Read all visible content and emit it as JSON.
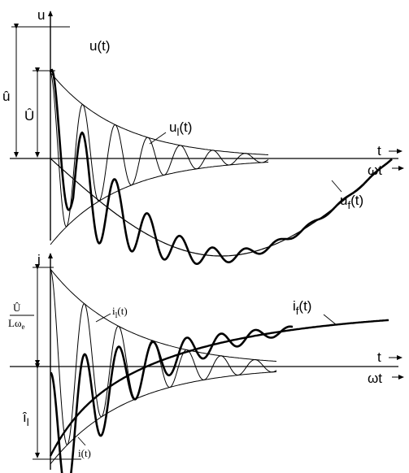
{
  "upper": {
    "axis_v": "u",
    "axis_t": "t",
    "axis_wt": "ωt",
    "amp_total": "û",
    "amp_free": "Û",
    "curve_total": "u(t)",
    "curve_free": "u",
    "curve_free_sub": "l",
    "curve_free_arg": "(t)",
    "curve_forced": "u",
    "curve_forced_sub": "f",
    "curve_forced_arg": "(t)"
  },
  "lower": {
    "axis_v": "i",
    "axis_t": "t",
    "axis_wt": "ωt",
    "frac_num": "Û",
    "frac_den": "Lω",
    "frac_den_sub": "e",
    "amp_free": "î",
    "amp_free_sub": "l",
    "curve_free": "i",
    "curve_free_sub": "l",
    "curve_free_arg": "(t)",
    "curve_forced": "i",
    "curve_forced_sub": "f",
    "curve_forced_arg": "(t)",
    "curve_total": "i(t)"
  },
  "colors": {
    "ink": "#000000",
    "paper": "#ffffff"
  }
}
